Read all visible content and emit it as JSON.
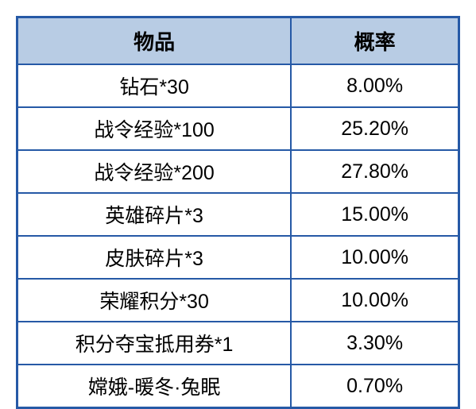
{
  "table": {
    "type": "table",
    "columns": [
      {
        "label": "物品",
        "width": "62%",
        "alignment": "center"
      },
      {
        "label": "概率",
        "width": "38%",
        "alignment": "center"
      }
    ],
    "rows": [
      {
        "item": "钻石*30",
        "rate": "8.00%"
      },
      {
        "item": "战令经验*100",
        "rate": "25.20%"
      },
      {
        "item": "战令经验*200",
        "rate": "27.80%"
      },
      {
        "item": "英雄碎片*3",
        "rate": "15.00%"
      },
      {
        "item": "皮肤碎片*3",
        "rate": "10.00%"
      },
      {
        "item": "荣耀积分*30",
        "rate": "10.00%"
      },
      {
        "item": "积分夺宝抵用券*1",
        "rate": "3.30%"
      },
      {
        "item": "嫦娥-暖冬·兔眠",
        "rate": "0.70%"
      }
    ],
    "style": {
      "header_background_color": "#b8cce4",
      "border_color": "#2659a6",
      "outer_border_width": 3,
      "inner_border_width": 2,
      "text_color": "#000000",
      "background_color": "#ffffff",
      "header_fontsize": 26,
      "cell_fontsize": 25,
      "header_fontweight": "bold",
      "cell_fontweight": 500
    }
  }
}
